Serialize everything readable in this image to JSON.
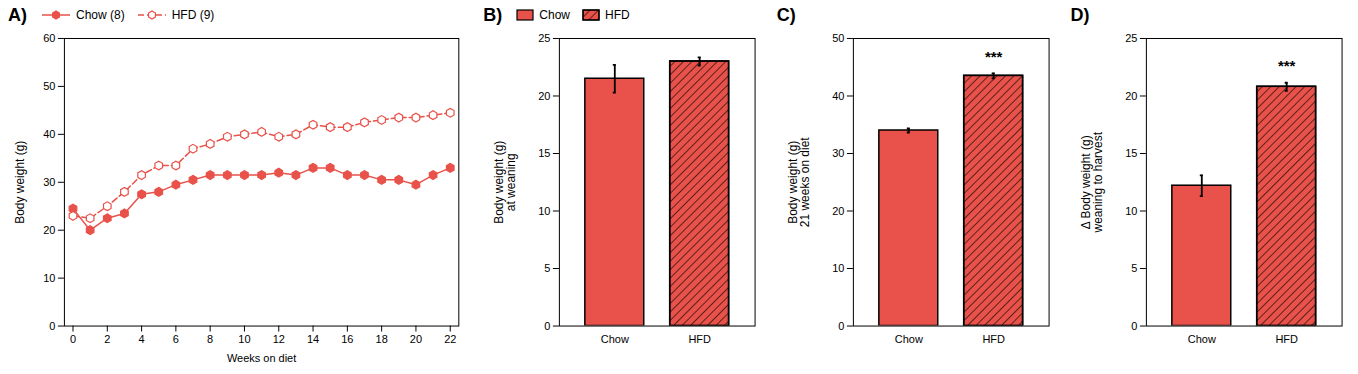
{
  "chart_data": [
    {
      "type": "line",
      "title": "A)",
      "xlabel": "Weeks on diet",
      "ylabel": "Body weight (g)",
      "x": [
        0,
        1,
        2,
        3,
        4,
        5,
        6,
        7,
        8,
        9,
        10,
        11,
        12,
        13,
        14,
        15,
        16,
        17,
        18,
        19,
        20,
        21,
        22
      ],
      "series": [
        {
          "name": "Chow (8)",
          "color": "#E8524A",
          "line_style": "solid",
          "marker": "hexagon",
          "values": [
            24.5,
            20.0,
            22.5,
            23.5,
            27.5,
            28.0,
            29.5,
            30.5,
            31.5,
            31.5,
            31.5,
            31.5,
            32.0,
            31.5,
            33.0,
            33.0,
            31.5,
            31.5,
            30.5,
            30.5,
            29.5,
            31.5,
            33.0
          ],
          "errors": [
            0.8,
            0.8,
            0.8,
            0.8,
            0.8,
            0.8,
            0.8,
            0.8,
            0.8,
            0.8,
            0.8,
            0.8,
            0.8,
            0.8,
            0.8,
            0.8,
            0.8,
            0.8,
            0.8,
            0.8,
            0.8,
            0.8,
            0.8
          ]
        },
        {
          "name": "HFD (9)",
          "color": "#E8524A",
          "line_style": "dashed",
          "marker": "hexagon_open",
          "values": [
            23.0,
            22.5,
            25.0,
            28.0,
            31.5,
            33.5,
            33.5,
            37.0,
            38.0,
            39.5,
            40.0,
            40.5,
            39.5,
            40.0,
            42.0,
            41.5,
            41.5,
            42.5,
            43.0,
            43.5,
            43.5,
            44.0,
            44.5
          ],
          "errors": [
            0.8,
            0.8,
            0.8,
            0.8,
            0.8,
            0.8,
            0.8,
            0.8,
            0.8,
            0.8,
            0.8,
            0.8,
            0.8,
            0.8,
            0.8,
            0.8,
            0.8,
            0.8,
            0.8,
            0.8,
            0.8,
            0.8,
            0.8
          ]
        }
      ],
      "xlim": [
        -0.5,
        22.5
      ],
      "xticks": [
        0,
        2,
        4,
        6,
        8,
        10,
        12,
        14,
        16,
        18,
        20,
        22
      ],
      "ylim": [
        0,
        60
      ],
      "yticks": [
        0,
        10,
        20,
        30,
        40,
        50,
        60
      ],
      "legend": "upper left"
    },
    {
      "type": "bar",
      "title": "B)",
      "ylabel": "Body weight (g)\nat weaning",
      "categories": [
        "Chow",
        "HFD"
      ],
      "values": [
        21.5,
        23.0
      ],
      "errors": [
        1.2,
        0.35
      ],
      "color": "#E8524A",
      "ylim": [
        0,
        25
      ],
      "yticks": [
        0,
        5,
        10,
        15,
        20,
        25
      ],
      "legend": "upper left"
    },
    {
      "type": "bar",
      "title": "C)",
      "ylabel": "Body weight (g)\n21 weeks on diet",
      "categories": [
        "Chow",
        "HFD"
      ],
      "values": [
        34.0,
        43.5
      ],
      "errors": [
        0.35,
        0.45
      ],
      "color": "#E8524A",
      "ylim": [
        0,
        50
      ],
      "yticks": [
        0,
        10,
        20,
        30,
        40,
        50
      ],
      "annotations": [
        {
          "x": "HFD",
          "text": "***"
        }
      ]
    },
    {
      "type": "bar",
      "title": "D)",
      "ylabel": "Δ Body weight (g)\nweaning to harvest",
      "categories": [
        "Chow",
        "HFD"
      ],
      "values": [
        12.2,
        20.8
      ],
      "errors": [
        0.9,
        0.35
      ],
      "color": "#E8524A",
      "ylim": [
        0,
        25
      ],
      "yticks": [
        0,
        5,
        10,
        15,
        20,
        25
      ],
      "annotations": [
        {
          "x": "HFD",
          "text": "***"
        }
      ]
    }
  ]
}
